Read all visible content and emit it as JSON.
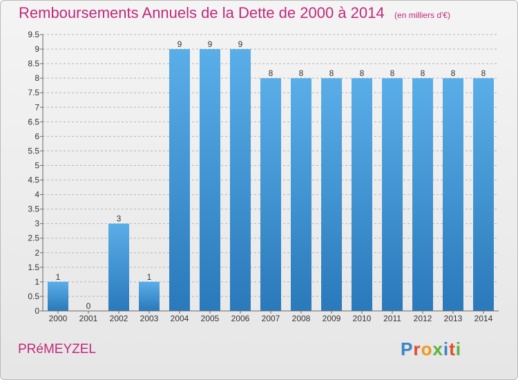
{
  "title": "Remboursements Annuels de la Dette de 2000 à 2014",
  "unit_note": "(en milliers d'€)",
  "commune": "PRéMEYZEL",
  "logo": {
    "text": "Proxiti",
    "letter_colors": [
      "#3a85c8",
      "#e54a2c",
      "#f19a1f",
      "#5ab43f",
      "#3a85c8",
      "#e54a2c",
      "#5ab43f"
    ]
  },
  "colors": {
    "title": "#c0297b",
    "bar_top": "#5aaee8",
    "bar_bottom": "#2a79bb",
    "axis": "#666666",
    "grid": "#b4b4b4"
  },
  "chart_data": {
    "type": "bar",
    "categories": [
      "2000",
      "2001",
      "2002",
      "2003",
      "2004",
      "2005",
      "2006",
      "2007",
      "2008",
      "2009",
      "2010",
      "2011",
      "2012",
      "2013",
      "2014"
    ],
    "values": [
      1,
      0,
      3,
      1,
      9,
      9,
      9,
      8,
      8,
      8,
      8,
      8,
      8,
      8,
      8
    ],
    "data_labels": [
      "1",
      "0",
      "3",
      "1",
      "9",
      "9",
      "9",
      "8",
      "8",
      "8",
      "8",
      "8",
      "8",
      "8",
      "8"
    ],
    "ylim": [
      0,
      9.5
    ],
    "yticks": [
      0,
      0.5,
      1,
      1.5,
      2,
      2.5,
      3,
      3.5,
      4,
      4.5,
      5,
      5.5,
      6,
      6.5,
      7,
      7.5,
      8,
      8.5,
      9,
      9.5
    ],
    "ytick_labels": [
      "0",
      "0.5",
      "1",
      "1.5",
      "2",
      "2.5",
      "3",
      "3.5",
      "4",
      "4.5",
      "5",
      "5.5",
      "6",
      "6.5",
      "7",
      "7.5",
      "8",
      "8.5",
      "9",
      "9.5"
    ],
    "grid": "horizontal dashed"
  }
}
